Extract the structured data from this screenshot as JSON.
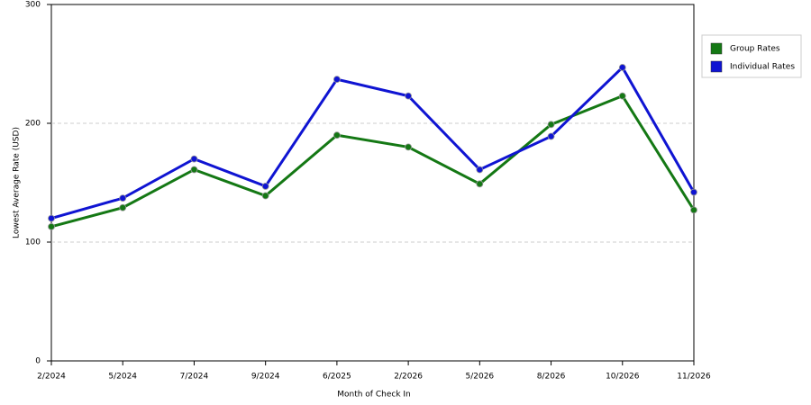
{
  "chart_data": {
    "type": "line",
    "x_label": "Month of Check In",
    "y_label": "Lowest Average Rate (USD)",
    "categories": [
      "2/2024",
      "5/2024",
      "7/2024",
      "9/2024",
      "6/2025",
      "2/2026",
      "5/2026",
      "8/2026",
      "10/2026",
      "11/2026"
    ],
    "series": [
      {
        "name": "Group Rates",
        "color": "#147814",
        "values": [
          113,
          129,
          161,
          139,
          190,
          180,
          149,
          199,
          223,
          127
        ]
      },
      {
        "name": "Individual Rates",
        "color": "#0f14d2",
        "values": [
          120,
          137,
          170,
          147,
          237,
          223,
          161,
          189,
          247,
          142
        ]
      }
    ],
    "ylim": [
      0,
      300
    ],
    "yticks": [
      0,
      100,
      200,
      300
    ],
    "grid": true,
    "legend": "right"
  }
}
